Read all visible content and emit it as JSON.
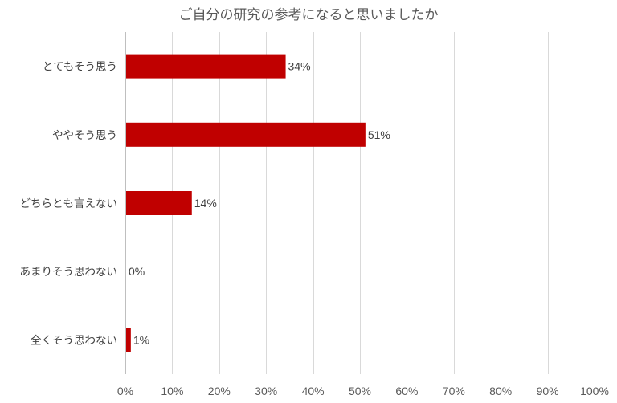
{
  "chart_data": {
    "type": "bar",
    "orientation": "horizontal",
    "title": "ご自分の研究の参考になると思いましたか",
    "categories": [
      "とてもそう思う",
      "ややそう思う",
      "どちらとも言えない",
      "あまりそう思わない",
      "全くそう思わない"
    ],
    "values": [
      34,
      51,
      14,
      0,
      1
    ],
    "value_labels": [
      "34%",
      "51%",
      "14%",
      "0%",
      "1%"
    ],
    "xlim": [
      0,
      100
    ],
    "x_ticks": [
      0,
      10,
      20,
      30,
      40,
      50,
      60,
      70,
      80,
      90,
      100
    ],
    "x_tick_labels": [
      "0%",
      "10%",
      "20%",
      "30%",
      "40%",
      "50%",
      "60%",
      "70%",
      "80%",
      "90%",
      "100%"
    ],
    "grid": true,
    "legend": "none",
    "bar_color": "#c00000"
  }
}
